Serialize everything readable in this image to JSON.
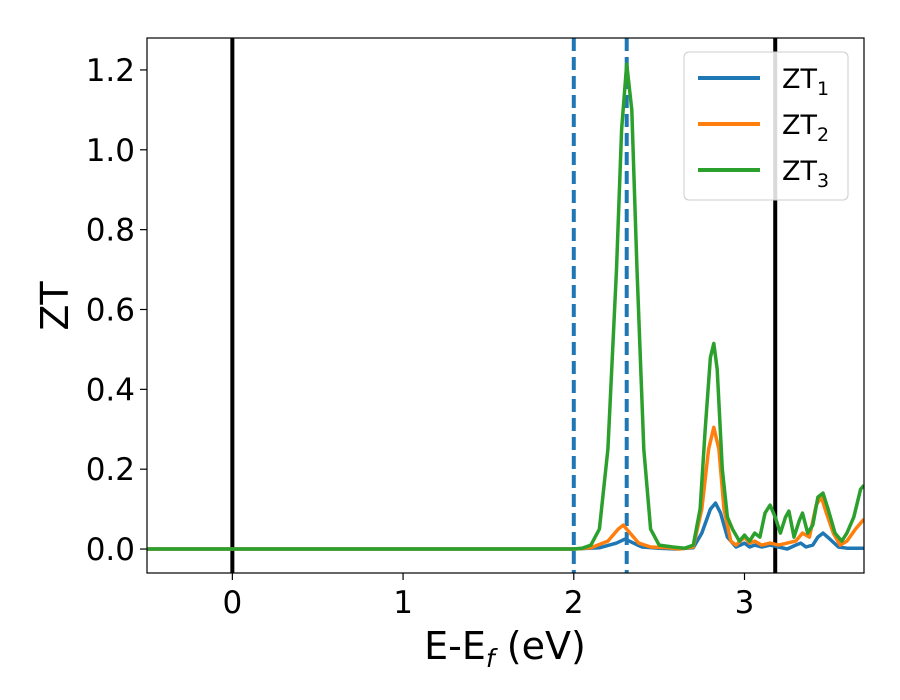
{
  "chart_data": {
    "type": "line",
    "xlabel": {
      "main": "E-E",
      "sub": "f",
      "suffix": " (eV)"
    },
    "ylabel": "ZT",
    "xlim": [
      -0.5,
      3.7
    ],
    "ylim": [
      -0.06,
      1.28
    ],
    "xticks": [
      0,
      1,
      2,
      3
    ],
    "xtick_labels": [
      "0",
      "1",
      "2",
      "3"
    ],
    "yticks": [
      0.0,
      0.2,
      0.4,
      0.6,
      0.8,
      1.0,
      1.2
    ],
    "ytick_labels": [
      "0.0",
      "0.2",
      "0.4",
      "0.6",
      "0.8",
      "1.0",
      "1.2"
    ],
    "grid": false,
    "legend_position": "top-right",
    "vertical_lines": [
      {
        "x": 0.0,
        "style": "solid",
        "color": "#000000"
      },
      {
        "x": 3.18,
        "style": "solid",
        "color": "#000000"
      },
      {
        "x": 2.0,
        "style": "dashed",
        "color": "#1f77b4"
      },
      {
        "x": 2.31,
        "style": "dashed",
        "color": "#1f77b4"
      }
    ],
    "series": [
      {
        "name": "ZT",
        "sub": "1",
        "color": "#1f77b4",
        "points": [
          [
            -0.5,
            0
          ],
          [
            2.0,
            0
          ],
          [
            2.15,
            0.003
          ],
          [
            2.25,
            0.015
          ],
          [
            2.3,
            0.025
          ],
          [
            2.35,
            0.015
          ],
          [
            2.4,
            0.005
          ],
          [
            2.5,
            0.002
          ],
          [
            2.6,
            0
          ],
          [
            2.7,
            0.003
          ],
          [
            2.75,
            0.04
          ],
          [
            2.8,
            0.1
          ],
          [
            2.83,
            0.115
          ],
          [
            2.86,
            0.09
          ],
          [
            2.9,
            0.03
          ],
          [
            2.95,
            0.005
          ],
          [
            3.0,
            0.015
          ],
          [
            3.03,
            0.005
          ],
          [
            3.06,
            0.01
          ],
          [
            3.1,
            0.005
          ],
          [
            3.15,
            0.01
          ],
          [
            3.2,
            0.005
          ],
          [
            3.25,
            0.0
          ],
          [
            3.3,
            0.01
          ],
          [
            3.33,
            0.015
          ],
          [
            3.36,
            0.005
          ],
          [
            3.4,
            0.01
          ],
          [
            3.43,
            0.03
          ],
          [
            3.46,
            0.04
          ],
          [
            3.5,
            0.025
          ],
          [
            3.55,
            0.005
          ],
          [
            3.6,
            0.002
          ],
          [
            3.7,
            0.002
          ]
        ]
      },
      {
        "name": "ZT",
        "sub": "2",
        "color": "#ff7f0e",
        "points": [
          [
            -0.5,
            0
          ],
          [
            2.0,
            0
          ],
          [
            2.1,
            0.003
          ],
          [
            2.2,
            0.02
          ],
          [
            2.26,
            0.05
          ],
          [
            2.29,
            0.06
          ],
          [
            2.33,
            0.04
          ],
          [
            2.38,
            0.015
          ],
          [
            2.45,
            0.005
          ],
          [
            2.55,
            0.003
          ],
          [
            2.62,
            0
          ],
          [
            2.7,
            0.005
          ],
          [
            2.75,
            0.1
          ],
          [
            2.79,
            0.25
          ],
          [
            2.82,
            0.305
          ],
          [
            2.85,
            0.25
          ],
          [
            2.88,
            0.1
          ],
          [
            2.92,
            0.02
          ],
          [
            2.95,
            0.01
          ],
          [
            3.0,
            0.03
          ],
          [
            3.03,
            0.015
          ],
          [
            3.06,
            0.02
          ],
          [
            3.1,
            0.01
          ],
          [
            3.15,
            0.015
          ],
          [
            3.2,
            0.01
          ],
          [
            3.25,
            0.015
          ],
          [
            3.3,
            0.02
          ],
          [
            3.34,
            0.04
          ],
          [
            3.38,
            0.03
          ],
          [
            3.42,
            0.11
          ],
          [
            3.45,
            0.13
          ],
          [
            3.48,
            0.09
          ],
          [
            3.52,
            0.04
          ],
          [
            3.56,
            0.01
          ],
          [
            3.6,
            0.02
          ],
          [
            3.65,
            0.05
          ],
          [
            3.7,
            0.075
          ]
        ]
      },
      {
        "name": "ZT",
        "sub": "3",
        "color": "#2ca02c",
        "points": [
          [
            -0.5,
            0
          ],
          [
            2.0,
            0
          ],
          [
            2.05,
            0.002
          ],
          [
            2.1,
            0.01
          ],
          [
            2.15,
            0.05
          ],
          [
            2.2,
            0.25
          ],
          [
            2.25,
            0.7
          ],
          [
            2.28,
            1.05
          ],
          [
            2.31,
            1.215
          ],
          [
            2.34,
            1.1
          ],
          [
            2.37,
            0.7
          ],
          [
            2.41,
            0.25
          ],
          [
            2.45,
            0.05
          ],
          [
            2.5,
            0.01
          ],
          [
            2.58,
            0.005
          ],
          [
            2.65,
            0.002
          ],
          [
            2.7,
            0.01
          ],
          [
            2.74,
            0.1
          ],
          [
            2.77,
            0.3
          ],
          [
            2.8,
            0.48
          ],
          [
            2.82,
            0.515
          ],
          [
            2.84,
            0.45
          ],
          [
            2.87,
            0.2
          ],
          [
            2.9,
            0.08
          ],
          [
            2.93,
            0.05
          ],
          [
            2.97,
            0.02
          ],
          [
            3.0,
            0.035
          ],
          [
            3.03,
            0.02
          ],
          [
            3.06,
            0.04
          ],
          [
            3.09,
            0.03
          ],
          [
            3.12,
            0.09
          ],
          [
            3.15,
            0.11
          ],
          [
            3.18,
            0.08
          ],
          [
            3.21,
            0.04
          ],
          [
            3.24,
            0.08
          ],
          [
            3.26,
            0.095
          ],
          [
            3.29,
            0.03
          ],
          [
            3.32,
            0.07
          ],
          [
            3.34,
            0.09
          ],
          [
            3.37,
            0.04
          ],
          [
            3.4,
            0.06
          ],
          [
            3.43,
            0.13
          ],
          [
            3.46,
            0.14
          ],
          [
            3.49,
            0.1
          ],
          [
            3.53,
            0.04
          ],
          [
            3.57,
            0.02
          ],
          [
            3.6,
            0.04
          ],
          [
            3.64,
            0.08
          ],
          [
            3.68,
            0.15
          ],
          [
            3.7,
            0.16
          ]
        ]
      }
    ]
  }
}
